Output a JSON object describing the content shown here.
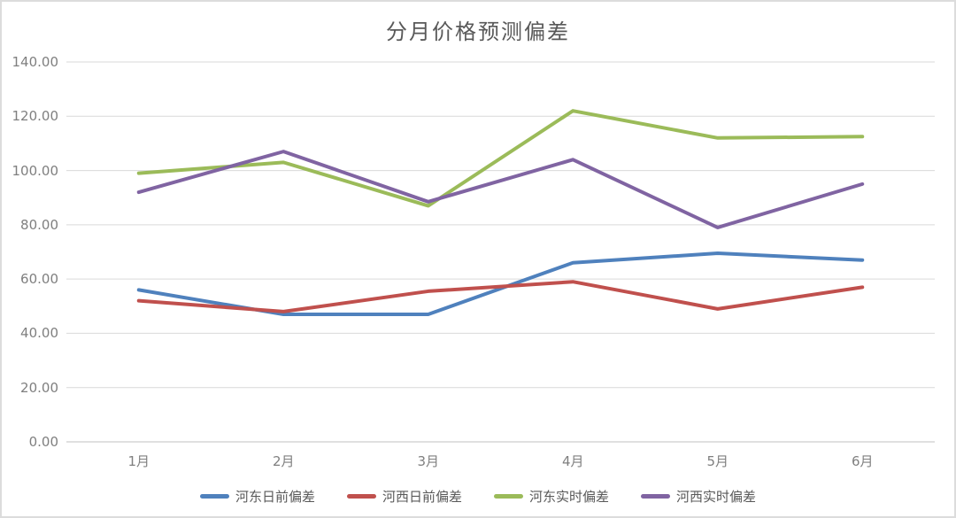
{
  "chart_data": {
    "type": "line",
    "title": "分月价格预测偏差",
    "categories": [
      "1月",
      "2月",
      "3月",
      "4月",
      "5月",
      "6月"
    ],
    "series": [
      {
        "name": "河东日前偏差",
        "color": "#4F81BD",
        "values": [
          56,
          47,
          47,
          66,
          69.5,
          67
        ]
      },
      {
        "name": "河西日前偏差",
        "color": "#C0504D",
        "values": [
          52,
          48,
          55.5,
          59,
          49,
          57
        ]
      },
      {
        "name": "河东实时偏差",
        "color": "#9BBB59",
        "values": [
          99,
          103,
          87,
          122,
          112,
          112.5
        ]
      },
      {
        "name": "河西实时偏差",
        "color": "#8064A2",
        "values": [
          92,
          107,
          88.5,
          104,
          79,
          95
        ]
      }
    ],
    "xlabel": "",
    "ylabel": "",
    "ylim": [
      0,
      140
    ],
    "y_step": 20,
    "y_tick_labels": [
      "0.00",
      "20.00",
      "40.00",
      "60.00",
      "80.00",
      "100.00",
      "120.00",
      "140.00"
    ],
    "grid": true,
    "legend_position": "bottom"
  },
  "styles": {
    "grid_color": "#D9D9D9",
    "axis_line_color": "#C0C0C0",
    "tick_label_color": "#7F7F7F",
    "title_color": "#595959",
    "legend_text_color": "#595959",
    "border_color": "#DCDCDC",
    "background_color": "#FFFFFF"
  }
}
